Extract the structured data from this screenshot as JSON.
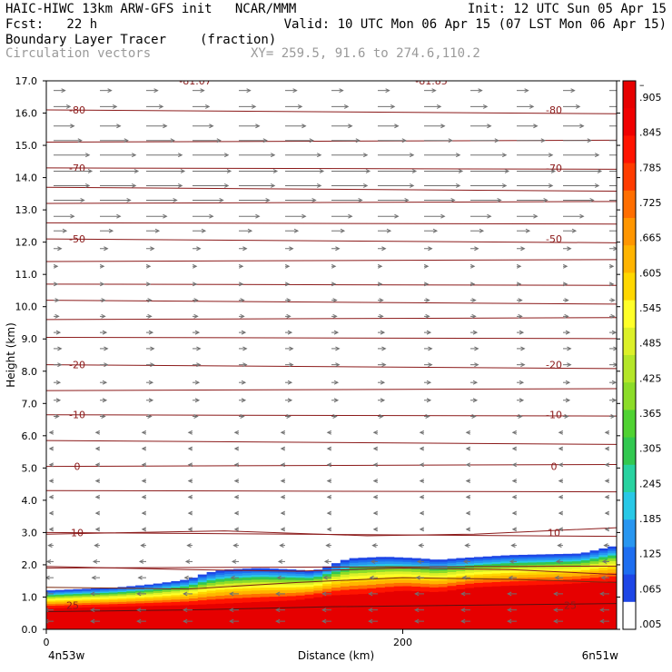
{
  "header": {
    "line1_left": "HAIC-HIWC 13km ARW-GFS init   NCAR/MMM",
    "line1_right": "Init: 12 UTC Sun 05 Apr 15",
    "line2_left": "Fcst:   22 h",
    "line2_right": "Valid: 10 UTC Mon 06 Apr 15 (07 LST Mon 06 Apr 15)",
    "line3_left": "Boundary Layer Tracer",
    "line3_units": "(fraction)",
    "line4_left": "Circulation vectors",
    "line4_xy": "XY= 259.5, 91.6 to 274.6,110.2"
  },
  "colors": {
    "contour": "#8b1a1a",
    "vector": "#707070",
    "frame": "#000000",
    "colorbar": [
      "#ffffff",
      "#1e46e6",
      "#1e6ef0",
      "#2896f0",
      "#28c8e6",
      "#28d2a0",
      "#32c850",
      "#50d232",
      "#8cdc28",
      "#b4e628",
      "#dcf028",
      "#ffff28",
      "#ffd700",
      "#ffb400",
      "#ff9600",
      "#ff6e00",
      "#ff3c00",
      "#ff1400",
      "#f00000",
      "#e60000"
    ]
  },
  "chart_data": {
    "type": "heatmap",
    "title": "Boundary Layer Tracer",
    "units": "(fraction)",
    "xlabel": "Distance (km)",
    "ylabel": "Height (km)",
    "x_ticks": [
      {
        "value": 0,
        "label": "0"
      },
      {
        "value": 200,
        "label": "200"
      }
    ],
    "xlim": [
      0,
      320
    ],
    "x_endpoints": {
      "left": "4n53w",
      "right": "6n51w"
    },
    "ylim": [
      0,
      17
    ],
    "y_ticks": [
      "0.0",
      "1.0",
      "2.0",
      "3.0",
      "4.0",
      "5.0",
      "6.0",
      "7.0",
      "8.0",
      "9.0",
      "10.0",
      "11.0",
      "12.0",
      "13.0",
      "14.0",
      "15.0",
      "16.0",
      "17.0"
    ],
    "colorbar_labels": [
      ".005",
      ".065",
      ".125",
      ".185",
      ".245",
      ".305",
      ".365",
      ".425",
      ".485",
      ".545",
      ".605",
      ".665",
      ".725",
      ".785",
      ".845",
      ".905",
      "–"
    ],
    "tracer_top_km": [
      [
        0,
        1.2
      ],
      [
        20,
        1.25
      ],
      [
        40,
        1.3
      ],
      [
        60,
        1.4
      ],
      [
        80,
        1.55
      ],
      [
        90,
        1.75
      ],
      [
        100,
        1.85
      ],
      [
        120,
        1.9
      ],
      [
        140,
        1.85
      ],
      [
        150,
        1.8
      ],
      [
        160,
        2.0
      ],
      [
        170,
        2.2
      ],
      [
        190,
        2.25
      ],
      [
        210,
        2.2
      ],
      [
        220,
        2.15
      ],
      [
        230,
        2.2
      ],
      [
        260,
        2.3
      ],
      [
        300,
        2.35
      ],
      [
        320,
        2.6
      ]
    ],
    "red_top_km": [
      [
        0,
        0.65
      ],
      [
        40,
        0.7
      ],
      [
        80,
        0.75
      ],
      [
        120,
        0.85
      ],
      [
        140,
        0.9
      ],
      [
        160,
        1.05
      ],
      [
        180,
        1.1
      ],
      [
        200,
        1.2
      ],
      [
        220,
        1.15
      ],
      [
        240,
        1.3
      ],
      [
        260,
        1.35
      ],
      [
        290,
        1.4
      ],
      [
        320,
        1.5
      ]
    ],
    "temperature_contours": [
      {
        "label": "-81.07",
        "y_km": 17.0
      },
      {
        "label": "-81.85",
        "y_km": 17.0
      },
      {
        "label": "-80",
        "y_km": 16.1
      },
      {
        "label": "-70",
        "y_km": 14.3
      },
      {
        "label": "-50",
        "y_km": 12.1
      },
      {
        "label": "-20",
        "y_km": 8.2
      },
      {
        "label": "-10",
        "y_km": 6.65
      },
      {
        "label": "0",
        "y_km": 5.05
      },
      {
        "label": "10",
        "y_km": 3.0
      },
      {
        "label": "25",
        "y_km": 0.75
      }
    ],
    "contour_lines_km": [
      16.1,
      15.1,
      14.3,
      13.7,
      13.2,
      12.6,
      12.1,
      11.4,
      10.7,
      10.2,
      9.6,
      9.05,
      8.2,
      7.4,
      6.65,
      5.85,
      5.05,
      4.3,
      3.0,
      1.9
    ],
    "wind_vectors": [
      {
        "y_km": 16.7,
        "u": 0.9
      },
      {
        "y_km": 16.2,
        "u": 1.3
      },
      {
        "y_km": 15.6,
        "u": 1.6
      },
      {
        "y_km": 15.15,
        "u": 2.2
      },
      {
        "y_km": 14.7,
        "u": 2.8
      },
      {
        "y_km": 14.2,
        "u": 3.0
      },
      {
        "y_km": 13.75,
        "u": 2.8
      },
      {
        "y_km": 13.3,
        "u": 2.4
      },
      {
        "y_km": 12.8,
        "u": 1.6
      },
      {
        "y_km": 12.35,
        "u": 1.0
      },
      {
        "y_km": 11.8,
        "u": 0.6
      },
      {
        "y_km": 11.25,
        "u": 0.3
      },
      {
        "y_km": 10.7,
        "u": 0.3
      },
      {
        "y_km": 10.2,
        "u": 0.4
      },
      {
        "y_km": 9.7,
        "u": 0.4
      },
      {
        "y_km": 9.2,
        "u": 0.5
      },
      {
        "y_km": 8.7,
        "u": 0.6
      },
      {
        "y_km": 8.2,
        "u": 0.6
      },
      {
        "y_km": 7.65,
        "u": 0.5
      },
      {
        "y_km": 7.1,
        "u": 0.5
      },
      {
        "y_km": 6.6,
        "u": 0.4
      },
      {
        "y_km": 6.1,
        "u": -0.3
      },
      {
        "y_km": 5.6,
        "u": -0.3
      },
      {
        "y_km": 5.1,
        "u": -0.3
      },
      {
        "y_km": 4.6,
        "u": -0.3
      },
      {
        "y_km": 4.1,
        "u": -0.3
      },
      {
        "y_km": 3.6,
        "u": -0.3
      },
      {
        "y_km": 3.1,
        "u": -0.3
      },
      {
        "y_km": 2.6,
        "u": -0.4
      },
      {
        "y_km": 2.1,
        "u": -0.5
      },
      {
        "y_km": 1.6,
        "u": -0.6
      },
      {
        "y_km": 1.1,
        "u": -0.7
      },
      {
        "y_km": 0.6,
        "u": -0.7
      },
      {
        "y_km": 0.25,
        "u": -0.7
      }
    ]
  }
}
